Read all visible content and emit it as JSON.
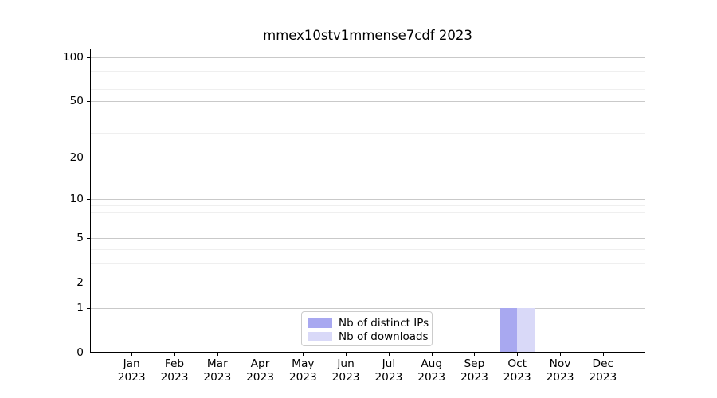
{
  "title": "mmex10stv1mmense7cdf 2023",
  "legend": {
    "items": [
      {
        "label": "Nb of distinct IPs",
        "color": "#a8a8f0"
      },
      {
        "label": "Nb of downloads",
        "color": "#d9d9f8"
      }
    ]
  },
  "chart_data": {
    "type": "bar",
    "title": "mmex10stv1mmense7cdf 2023",
    "categories": [
      "Jan 2023",
      "Feb 2023",
      "Mar 2023",
      "Apr 2023",
      "May 2023",
      "Jun 2023",
      "Jul 2023",
      "Aug 2023",
      "Sep 2023",
      "Oct 2023",
      "Nov 2023",
      "Dec 2023"
    ],
    "series": [
      {
        "name": "Nb of distinct IPs",
        "color": "#a8a8f0",
        "values": [
          0,
          0,
          0,
          0,
          0,
          0,
          0,
          0,
          0,
          1,
          0,
          0
        ]
      },
      {
        "name": "Nb of downloads",
        "color": "#d9d9f8",
        "values": [
          0,
          0,
          0,
          0,
          0,
          0,
          0,
          0,
          0,
          1,
          0,
          0
        ]
      }
    ],
    "xlabel": "",
    "ylabel": "",
    "yscale": "log1p",
    "y_ticks": [
      0,
      1,
      2,
      5,
      10,
      20,
      50,
      100
    ],
    "y_minor_ticks": [
      3,
      4,
      6,
      7,
      8,
      9,
      30,
      40,
      60,
      70,
      80,
      90
    ],
    "ylim": [
      0,
      114
    ],
    "grid": true,
    "legend_position": "lower center",
    "colors": {
      "grid_major": "#c9c9c9",
      "grid_minor": "#efefef",
      "axis": "#000000",
      "text": "#000000",
      "background": "#ffffff"
    }
  }
}
